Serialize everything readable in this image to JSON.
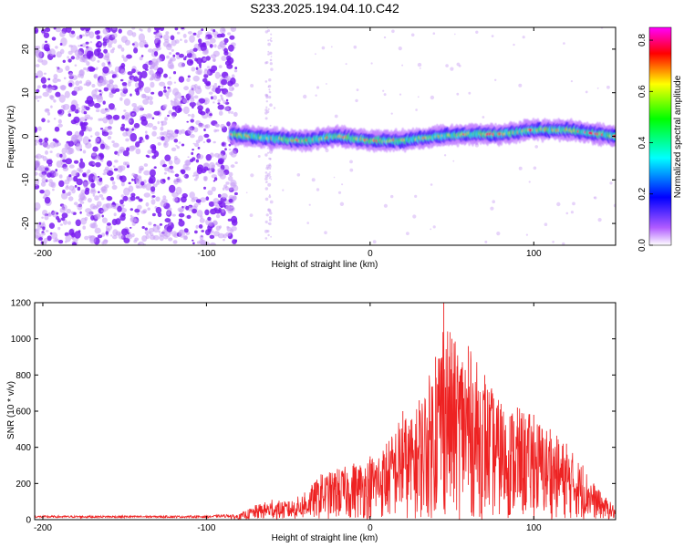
{
  "figure": {
    "title": "S233.2025.194.04.10.C42"
  },
  "chart_data": [
    {
      "type": "heatmap",
      "xlabel": "Height of straight line (km)",
      "ylabel": "Frequency (Hz)",
      "xlim": [
        -205,
        150
      ],
      "ylim": [
        -25,
        25
      ],
      "xticks": [
        -200,
        -100,
        0,
        100
      ],
      "yticks": [
        -20,
        -10,
        0,
        10,
        20
      ],
      "colorbar": {
        "label": "Normalized spectral amplitude",
        "range": [
          0,
          0.85
        ],
        "ticks": [
          "0.0",
          "0.2",
          "0.4",
          "0.6",
          "0.8"
        ],
        "colors": [
          "#ffffff",
          "#b15cff",
          "#0000ff",
          "#00ffff",
          "#00ff00",
          "#ffff00",
          "#ff0000",
          "#ff00ff"
        ]
      },
      "ridge": {
        "x": [
          -85,
          -60,
          -40,
          -20,
          0,
          20,
          40,
          60,
          80,
          100,
          120,
          140,
          150
        ],
        "y": [
          0.5,
          -0.5,
          -1.0,
          0.0,
          -1.0,
          -1.0,
          0.0,
          0.5,
          0.5,
          1.5,
          1.5,
          0.5,
          0.0
        ]
      },
      "noise_region_x": [
        -205,
        -85
      ]
    },
    {
      "type": "line",
      "xlabel": "Height of straight line (km)",
      "ylabel": "SNR (10 * v/v)",
      "xlim": [
        -205,
        150
      ],
      "ylim": [
        0,
        1200
      ],
      "xticks": [
        -200,
        -100,
        0,
        100
      ],
      "yticks": [
        0,
        200,
        400,
        600,
        800,
        1000,
        1200
      ],
      "series": [
        {
          "color": "#ee2222",
          "x": [
            -205,
            -100,
            -80,
            -70,
            -60,
            -50,
            -40,
            -30,
            -20,
            -10,
            0,
            10,
            20,
            25,
            30,
            40,
            45,
            50,
            60,
            70,
            80,
            90,
            100,
            110,
            120,
            130,
            140,
            150
          ],
          "y": [
            20,
            20,
            30,
            80,
            110,
            100,
            150,
            250,
            280,
            310,
            350,
            420,
            600,
            550,
            660,
            900,
            1200,
            1000,
            960,
            800,
            640,
            620,
            580,
            500,
            420,
            300,
            160,
            70
          ]
        }
      ]
    }
  ]
}
